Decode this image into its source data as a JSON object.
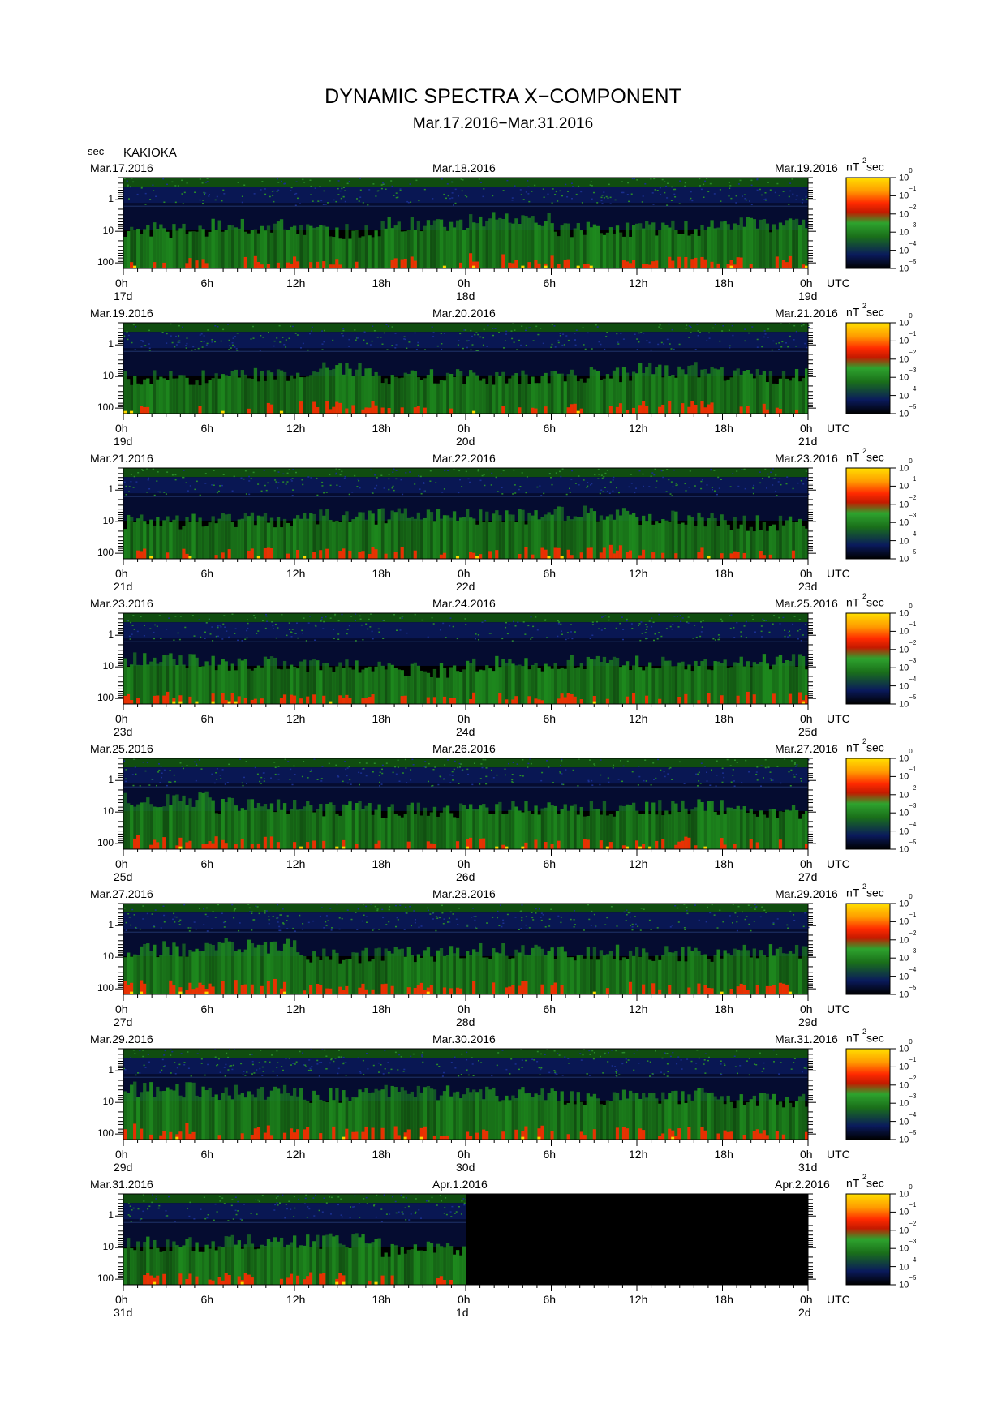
{
  "header": {
    "title": "DYNAMIC SPECTRA X−COMPONENT",
    "subtitle": "Mar.17.2016−Mar.31.2016",
    "period_unit": "sec",
    "station": "KAKIOKA"
  },
  "axes": {
    "y_ticks": [
      "1",
      "10",
      "100"
    ],
    "x_ticks": [
      "0h",
      "6h",
      "12h",
      "18h",
      "0h",
      "6h",
      "12h",
      "18h",
      "0h"
    ],
    "utc_label": "UTC",
    "colorbar_unit": "nT",
    "colorbar_unit_power": "2",
    "colorbar_unit_suffix": "sec",
    "colorbar_base": "10",
    "colorbar_exponents": [
      "0",
      "−1",
      "−2",
      "−3",
      "−4",
      "−5"
    ]
  },
  "colors": {
    "background": "#000000",
    "low_power": "#0a1a5c",
    "mid_power": "#1f8f1f",
    "high_power": "#ff2a00",
    "peak_power": "#ffd800"
  },
  "chart_data": {
    "type": "heatmap",
    "title": "DYNAMIC SPECTRA X−COMPONENT",
    "subtitle": "Mar.17.2016−Mar.31.2016",
    "ylabel": "sec",
    "y_scale": "log",
    "y_inverted": true,
    "colorbar_range": [
      1e-05,
      1
    ],
    "colorbar_scale": "log",
    "panels": [
      {
        "start": "Mar.17.2016",
        "mid": "Mar.18.2016",
        "end": "Mar.19.2016",
        "days": [
          "17d",
          "18d",
          "19d"
        ],
        "data_until_hours": 48,
        "activity": [
          0.45,
          0.55,
          0.4,
          0.6,
          0.75,
          0.45,
          0.5,
          0.6
        ]
      },
      {
        "start": "Mar.19.2016",
        "mid": "Mar.20.2016",
        "end": "Mar.21.2016",
        "days": [
          "19d",
          "20d",
          "21d"
        ],
        "data_until_hours": 48,
        "activity": [
          0.35,
          0.45,
          0.6,
          0.4,
          0.35,
          0.45,
          0.6,
          0.4
        ]
      },
      {
        "start": "Mar.21.2016",
        "mid": "Mar.22.2016",
        "end": "Mar.23.2016",
        "days": [
          "21d",
          "22d",
          "23d"
        ],
        "data_until_hours": 48,
        "activity": [
          0.4,
          0.45,
          0.55,
          0.6,
          0.55,
          0.65,
          0.5,
          0.35
        ]
      },
      {
        "start": "Mar.23.2016",
        "mid": "Mar.24.2016",
        "end": "Mar.25.2016",
        "days": [
          "23d",
          "24d",
          "25d"
        ],
        "data_until_hours": 48,
        "activity": [
          0.6,
          0.5,
          0.45,
          0.3,
          0.5,
          0.55,
          0.5,
          0.55
        ]
      },
      {
        "start": "Mar.25.2016",
        "mid": "Mar.26.2016",
        "end": "Mar.27.2016",
        "days": [
          "25d",
          "26d",
          "27d"
        ],
        "data_until_hours": 48,
        "activity": [
          0.8,
          0.6,
          0.5,
          0.45,
          0.55,
          0.5,
          0.55,
          0.4
        ]
      },
      {
        "start": "Mar.27.2016",
        "mid": "Mar.28.2016",
        "end": "Mar.29.2016",
        "days": [
          "27d",
          "28d",
          "29d"
        ],
        "data_until_hours": 48,
        "activity": [
          0.65,
          0.75,
          0.45,
          0.5,
          0.6,
          0.55,
          0.5,
          0.6
        ]
      },
      {
        "start": "Mar.29.2016",
        "mid": "Mar.30.2016",
        "end": "Mar.31.2016",
        "days": [
          "29d",
          "30d",
          "31d"
        ],
        "data_until_hours": 48,
        "activity": [
          0.8,
          0.7,
          0.6,
          0.7,
          0.65,
          0.55,
          0.6,
          0.45
        ]
      },
      {
        "start": "Mar.31.2016",
        "mid": "Apr.1.2016",
        "end": "Apr.2.2016",
        "days": [
          "31d",
          "1d",
          "2d"
        ],
        "data_until_hours": 24,
        "activity": [
          0.5,
          0.55,
          0.6,
          0.35,
          0,
          0,
          0,
          0
        ]
      }
    ]
  }
}
